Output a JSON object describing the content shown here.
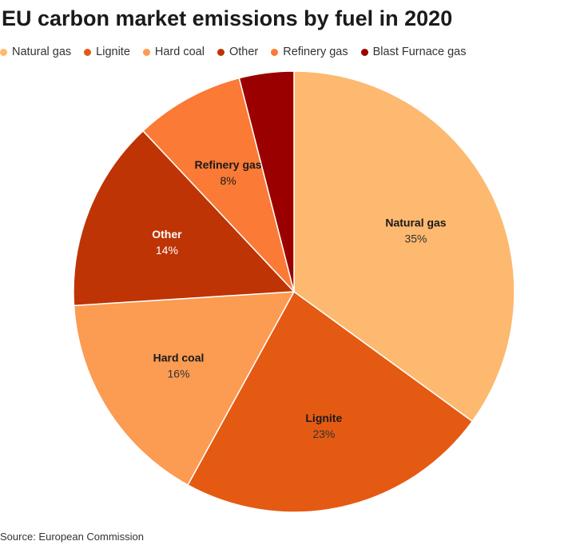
{
  "title": "EU carbon market emissions by fuel in 2020",
  "source": "Source: European Commission",
  "chart_data": {
    "type": "pie",
    "title": "EU carbon market emissions by fuel in 2020",
    "legend_position": "top",
    "start_angle_deg": 0,
    "direction": "clockwise",
    "slices": [
      {
        "name": "Natural gas",
        "value": 35,
        "label": "35%",
        "color": "#FDB96F",
        "label_color": "#1a1a1a",
        "pct_color": "#333333"
      },
      {
        "name": "Lignite",
        "value": 23,
        "label": "23%",
        "color": "#E55A12",
        "label_color": "#1a1a1a",
        "pct_color": "#333333"
      },
      {
        "name": "Hard coal",
        "value": 16,
        "label": "16%",
        "color": "#FC9B52",
        "label_color": "#1a1a1a",
        "pct_color": "#333333"
      },
      {
        "name": "Other",
        "value": 14,
        "label": "14%",
        "color": "#BE3405",
        "label_color": "#ffffff",
        "pct_color": "#ffffff"
      },
      {
        "name": "Refinery gas",
        "value": 8,
        "label": "8%",
        "color": "#FA7A36",
        "label_color": "#1a1a1a",
        "pct_color": "#1a1a1a"
      },
      {
        "name": "Blast Furnace gas",
        "value": 4,
        "label": "",
        "color": "#9B0000",
        "label_color": "#ffffff",
        "pct_color": "#ffffff"
      }
    ]
  }
}
